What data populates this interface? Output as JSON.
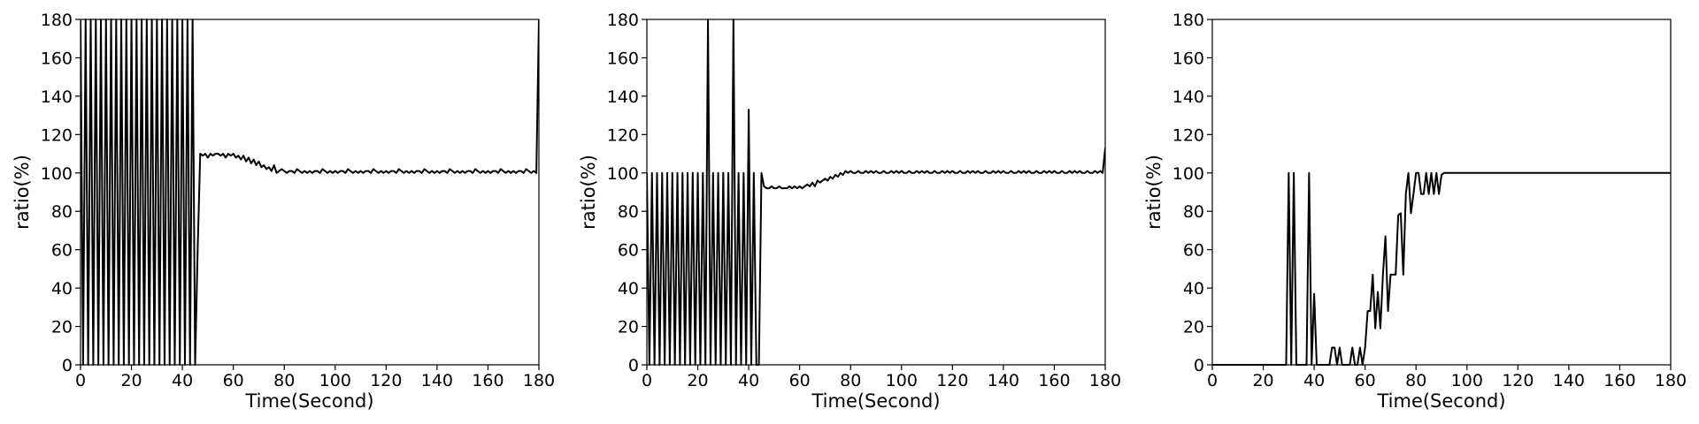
{
  "chart_data": [
    {
      "type": "line",
      "xlabel": "Time(Second)",
      "ylabel": "ratio(%)",
      "color": "#000000",
      "xlim": [
        0,
        180
      ],
      "xticks": [
        0,
        20,
        40,
        60,
        80,
        100,
        120,
        140,
        160,
        180
      ],
      "ylim": [
        0,
        180
      ],
      "yticks": [
        0,
        20,
        40,
        60,
        80,
        100,
        120,
        140,
        160,
        180
      ],
      "x": [
        0,
        1,
        2,
        3,
        4,
        5,
        6,
        7,
        8,
        9,
        10,
        11,
        12,
        13,
        14,
        15,
        16,
        17,
        18,
        19,
        20,
        21,
        22,
        23,
        24,
        25,
        26,
        27,
        28,
        29,
        30,
        31,
        32,
        33,
        34,
        35,
        36,
        37,
        38,
        39,
        40,
        41,
        42,
        43,
        44,
        45,
        46,
        47,
        48,
        49,
        50,
        51,
        52,
        53,
        54,
        55,
        56,
        57,
        58,
        59,
        60,
        61,
        62,
        63,
        64,
        65,
        66,
        67,
        68,
        69,
        70,
        71,
        72,
        73,
        74,
        75,
        76,
        77,
        78,
        79,
        80,
        81,
        82,
        83,
        84,
        85,
        86,
        87,
        88,
        89,
        90,
        91,
        92,
        93,
        94,
        95,
        96,
        97,
        98,
        99,
        100,
        101,
        102,
        103,
        104,
        105,
        106,
        107,
        108,
        109,
        110,
        111,
        112,
        113,
        114,
        115,
        116,
        117,
        118,
        119,
        120,
        121,
        122,
        123,
        124,
        125,
        126,
        127,
        128,
        129,
        130,
        131,
        132,
        133,
        134,
        135,
        136,
        137,
        138,
        139,
        140,
        141,
        142,
        143,
        144,
        145,
        146,
        147,
        148,
        149,
        150,
        151,
        152,
        153,
        154,
        155,
        156,
        157,
        158,
        159,
        160,
        161,
        162,
        163,
        164,
        165,
        166,
        167,
        168,
        169,
        170,
        171,
        172,
        173,
        174,
        175,
        176,
        177,
        178,
        179,
        180
      ],
      "values": [
        180,
        0,
        180,
        0,
        180,
        0,
        180,
        0,
        180,
        0,
        180,
        0,
        180,
        0,
        180,
        0,
        180,
        0,
        180,
        0,
        180,
        0,
        180,
        0,
        180,
        0,
        180,
        0,
        180,
        0,
        180,
        0,
        180,
        0,
        180,
        0,
        180,
        0,
        180,
        0,
        180,
        0,
        180,
        0,
        180,
        0,
        60,
        110,
        109,
        110,
        108,
        110,
        109,
        110,
        110,
        109,
        110,
        108,
        110,
        109,
        110,
        108,
        109,
        107,
        109,
        106,
        108,
        105,
        107,
        104,
        106,
        103,
        104,
        102,
        103,
        101,
        104,
        100,
        101,
        102,
        101,
        100,
        101,
        101,
        100,
        102,
        101,
        100,
        101,
        100,
        101,
        100,
        101,
        101,
        100,
        102,
        101,
        100,
        101,
        100,
        101,
        100,
        101,
        101,
        100,
        102,
        101,
        100,
        101,
        100,
        101,
        100,
        101,
        101,
        100,
        102,
        101,
        100,
        101,
        100,
        101,
        100,
        101,
        101,
        100,
        102,
        101,
        100,
        101,
        100,
        101,
        100,
        101,
        101,
        100,
        102,
        101,
        100,
        101,
        100,
        101,
        100,
        101,
        101,
        100,
        102,
        101,
        100,
        101,
        100,
        101,
        100,
        101,
        101,
        100,
        102,
        101,
        100,
        101,
        100,
        101,
        100,
        101,
        101,
        100,
        102,
        101,
        100,
        101,
        100,
        101,
        100,
        101,
        101,
        100,
        102,
        101,
        100,
        101,
        100,
        180
      ]
    },
    {
      "type": "line",
      "xlabel": "Time(Second)",
      "ylabel": "ratio(%)",
      "color": "#000000",
      "xlim": [
        0,
        180
      ],
      "xticks": [
        0,
        20,
        40,
        60,
        80,
        100,
        120,
        140,
        160,
        180
      ],
      "ylim": [
        0,
        180
      ],
      "yticks": [
        0,
        20,
        40,
        60,
        80,
        100,
        120,
        140,
        160,
        180
      ],
      "x": [
        0,
        1,
        2,
        3,
        4,
        5,
        6,
        7,
        8,
        9,
        10,
        11,
        12,
        13,
        14,
        15,
        16,
        17,
        18,
        19,
        20,
        21,
        22,
        23,
        24,
        25,
        26,
        27,
        28,
        29,
        30,
        31,
        32,
        33,
        34,
        35,
        36,
        37,
        38,
        39,
        40,
        41,
        42,
        43,
        44,
        45,
        46,
        47,
        48,
        49,
        50,
        51,
        52,
        53,
        54,
        55,
        56,
        57,
        58,
        59,
        60,
        61,
        62,
        63,
        64,
        65,
        66,
        67,
        68,
        69,
        70,
        71,
        72,
        73,
        74,
        75,
        76,
        77,
        78,
        79,
        80,
        81,
        82,
        83,
        84,
        85,
        86,
        87,
        88,
        89,
        90,
        91,
        92,
        93,
        94,
        95,
        96,
        97,
        98,
        99,
        100,
        101,
        102,
        103,
        104,
        105,
        106,
        107,
        108,
        109,
        110,
        111,
        112,
        113,
        114,
        115,
        116,
        117,
        118,
        119,
        120,
        121,
        122,
        123,
        124,
        125,
        126,
        127,
        128,
        129,
        130,
        131,
        132,
        133,
        134,
        135,
        136,
        137,
        138,
        139,
        140,
        141,
        142,
        143,
        144,
        145,
        146,
        147,
        148,
        149,
        150,
        151,
        152,
        153,
        154,
        155,
        156,
        157,
        158,
        159,
        160,
        161,
        162,
        163,
        164,
        165,
        166,
        167,
        168,
        169,
        170,
        171,
        172,
        173,
        174,
        175,
        176,
        177,
        178,
        179,
        180
      ],
      "values": [
        100,
        0,
        100,
        0,
        100,
        0,
        100,
        0,
        100,
        0,
        100,
        0,
        100,
        0,
        100,
        0,
        100,
        0,
        100,
        0,
        100,
        0,
        100,
        0,
        180,
        0,
        100,
        0,
        100,
        0,
        100,
        0,
        100,
        0,
        180,
        0,
        100,
        0,
        100,
        0,
        133,
        0,
        100,
        0,
        0,
        100,
        93,
        92,
        92,
        93,
        92,
        92,
        93,
        92,
        92,
        92,
        93,
        92,
        93,
        92,
        93,
        92,
        93,
        94,
        93,
        95,
        93,
        96,
        95,
        96,
        97,
        96,
        98,
        97,
        99,
        98,
        100,
        99,
        101,
        100,
        101,
        100,
        100,
        101,
        100,
        100,
        101,
        100,
        101,
        100,
        101,
        100,
        100,
        101,
        100,
        100,
        101,
        100,
        101,
        100,
        101,
        100,
        100,
        101,
        100,
        100,
        101,
        100,
        101,
        100,
        101,
        100,
        100,
        101,
        100,
        100,
        101,
        100,
        101,
        100,
        101,
        100,
        100,
        101,
        100,
        100,
        101,
        100,
        101,
        100,
        101,
        100,
        100,
        101,
        100,
        100,
        101,
        100,
        101,
        100,
        101,
        100,
        100,
        101,
        100,
        100,
        101,
        100,
        101,
        100,
        101,
        100,
        100,
        101,
        100,
        100,
        101,
        100,
        101,
        100,
        101,
        100,
        100,
        101,
        100,
        100,
        101,
        100,
        101,
        100,
        101,
        100,
        100,
        101,
        100,
        100,
        101,
        100,
        101,
        100,
        113
      ]
    },
    {
      "type": "line",
      "xlabel": "Time(Second)",
      "ylabel": "ratio(%)",
      "color": "#000000",
      "xlim": [
        0,
        180
      ],
      "xticks": [
        0,
        20,
        40,
        60,
        80,
        100,
        120,
        140,
        160,
        180
      ],
      "ylim": [
        0,
        180
      ],
      "yticks": [
        0,
        20,
        40,
        60,
        80,
        100,
        120,
        140,
        160,
        180
      ],
      "x": [
        0,
        1,
        2,
        3,
        4,
        5,
        6,
        7,
        8,
        9,
        10,
        11,
        12,
        13,
        14,
        15,
        16,
        17,
        18,
        19,
        20,
        21,
        22,
        23,
        24,
        25,
        26,
        27,
        28,
        29,
        30,
        31,
        32,
        33,
        34,
        35,
        36,
        37,
        38,
        39,
        40,
        41,
        42,
        43,
        44,
        45,
        46,
        47,
        48,
        49,
        50,
        51,
        52,
        53,
        54,
        55,
        56,
        57,
        58,
        59,
        60,
        61,
        62,
        63,
        64,
        65,
        66,
        67,
        68,
        69,
        70,
        71,
        72,
        73,
        74,
        75,
        76,
        77,
        78,
        79,
        80,
        81,
        82,
        83,
        84,
        85,
        86,
        87,
        88,
        89,
        90,
        91,
        92,
        93,
        94,
        95,
        96,
        97,
        98,
        99,
        100,
        101,
        102,
        103,
        104,
        105,
        106,
        107,
        108,
        109,
        110,
        111,
        112,
        113,
        114,
        115,
        116,
        117,
        118,
        119,
        120,
        121,
        122,
        123,
        124,
        125,
        126,
        127,
        128,
        129,
        130,
        131,
        132,
        133,
        134,
        135,
        136,
        137,
        138,
        139,
        140,
        141,
        142,
        143,
        144,
        145,
        146,
        147,
        148,
        149,
        150,
        151,
        152,
        153,
        154,
        155,
        156,
        157,
        158,
        159,
        160,
        161,
        162,
        163,
        164,
        165,
        166,
        167,
        168,
        169,
        170,
        171,
        172,
        173,
        174,
        175,
        176,
        177,
        178,
        179,
        180
      ],
      "values": [
        0,
        0,
        0,
        0,
        0,
        0,
        0,
        0,
        0,
        0,
        0,
        0,
        0,
        0,
        0,
        0,
        0,
        0,
        0,
        0,
        0,
        0,
        0,
        0,
        0,
        0,
        0,
        0,
        0,
        0,
        100,
        0,
        100,
        0,
        0,
        0,
        0,
        0,
        100,
        0,
        37,
        0,
        0,
        0,
        0,
        0,
        0,
        9,
        9,
        0,
        9,
        0,
        0,
        0,
        0,
        9,
        0,
        0,
        9,
        0,
        9,
        28,
        28,
        47,
        19,
        38,
        19,
        47,
        67,
        28,
        47,
        47,
        47,
        78,
        79,
        47,
        89,
        100,
        79,
        89,
        100,
        100,
        89,
        89,
        100,
        89,
        100,
        89,
        100,
        89,
        99,
        100,
        100,
        100,
        100,
        100,
        100,
        100,
        100,
        100,
        100,
        100,
        100,
        100,
        100,
        100,
        100,
        100,
        100,
        100,
        100,
        100,
        100,
        100,
        100,
        100,
        100,
        100,
        100,
        100,
        100,
        100,
        100,
        100,
        100,
        100,
        100,
        100,
        100,
        100,
        100,
        100,
        100,
        100,
        100,
        100,
        100,
        100,
        100,
        100,
        100,
        100,
        100,
        100,
        100,
        100,
        100,
        100,
        100,
        100,
        100,
        100,
        100,
        100,
        100,
        100,
        100,
        100,
        100,
        100,
        100,
        100,
        100,
        100,
        100,
        100,
        100,
        100,
        100,
        100,
        100,
        100,
        100,
        100,
        100,
        100,
        100,
        100,
        100,
        100,
        100
      ]
    }
  ]
}
